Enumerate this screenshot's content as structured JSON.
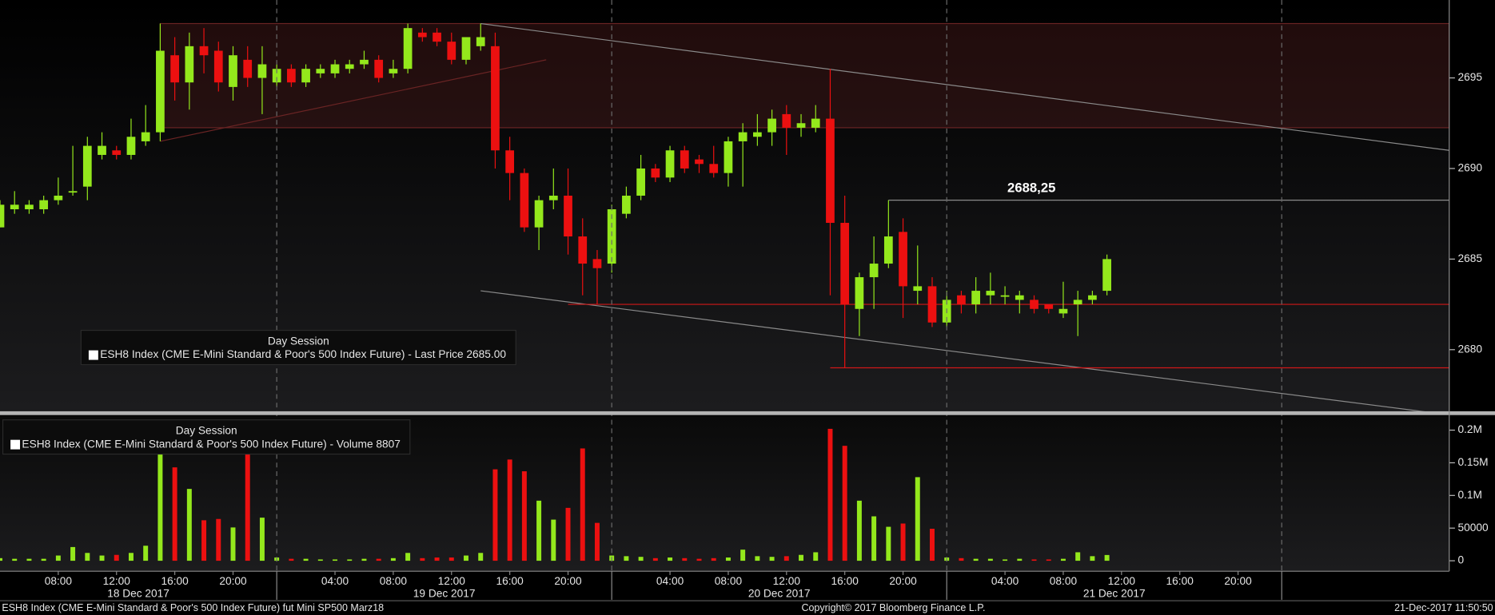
{
  "chart_data": {
    "type": "candlestick",
    "days": [
      {
        "label": "18 Dec 2017",
        "categories": [
          null,
          null,
          null,
          null,
          "08:00",
          null,
          null,
          null,
          "12:00",
          null,
          null,
          null,
          "16:00",
          null,
          null,
          null,
          "20:00",
          null,
          null
        ]
      },
      {
        "label": "19 Dec 2017",
        "categories": [
          null,
          null,
          null,
          null,
          "04:00",
          null,
          null,
          null,
          "08:00",
          null,
          null,
          null,
          "12:00",
          null,
          null,
          null,
          "16:00",
          null,
          null,
          null,
          "20:00",
          null,
          null
        ]
      },
      {
        "label": "20 Dec 2017",
        "categories": [
          null,
          null,
          null,
          null,
          "04:00",
          null,
          null,
          null,
          "08:00",
          null,
          null,
          null,
          "12:00",
          null,
          null,
          null,
          "16:00",
          null,
          null,
          null,
          "20:00",
          null,
          null
        ]
      },
      {
        "label": "21 Dec 2017",
        "categories": [
          null,
          null,
          null,
          null,
          "04:00",
          null,
          null,
          null,
          "08:00",
          null,
          null,
          null,
          "12:00",
          null,
          null,
          null,
          "16:00",
          null,
          null,
          null,
          "20:00",
          null,
          null
        ]
      },
      {
        "label": null,
        "categories": [
          null,
          null,
          null,
          null,
          null,
          null,
          null,
          null,
          null,
          null,
          null,
          null
        ]
      }
    ],
    "open": [
      2686.75,
      2687.75,
      2687.75,
      2687.75,
      2688.25,
      2688.75,
      2689.0,
      2690.75,
      2691.0,
      2690.75,
      2691.5,
      2692.0,
      2696.25,
      2694.75,
      2696.75,
      2696.5,
      2694.5,
      2696.0,
      2695.0,
      2694.75,
      2695.5,
      2694.75,
      2695.25,
      2695.25,
      2695.5,
      2695.75,
      2696.0,
      2695.25,
      2695.5,
      2697.5,
      2697.5,
      2697.0,
      2696.0,
      2696.75,
      2696.75,
      2691.0,
      2689.75,
      2686.75,
      2688.25,
      2688.5,
      2686.25,
      2685.0,
      2684.75,
      2687.5,
      2688.5,
      2690.0,
      2689.5,
      2691.0,
      2690.5,
      2690.25,
      2689.75,
      2691.5,
      2691.75,
      2692.0,
      2693.0,
      2692.25,
      2692.25,
      2692.75,
      2687.0,
      2682.25,
      2684.0,
      2684.75,
      2686.5,
      2683.25,
      2683.5,
      2681.5,
      2683.0,
      2682.5,
      2683.0,
      2683.0,
      2682.75,
      2682.75,
      2682.5,
      2682.0,
      2682.5,
      2682.75,
      2683.25
    ],
    "high": [
      2688.25,
      2688.75,
      2688.25,
      2688.5,
      2689.5,
      2691.25,
      2691.75,
      2692.0,
      2691.25,
      2692.75,
      2693.5,
      2698.0,
      2697.25,
      2697.5,
      2697.75,
      2697.0,
      2696.75,
      2696.75,
      2696.75,
      2695.75,
      2695.75,
      2695.75,
      2695.75,
      2696.0,
      2696.0,
      2696.5,
      2696.25,
      2696.0,
      2698.0,
      2697.75,
      2697.75,
      2697.5,
      2697.25,
      2698.0,
      2697.5,
      2691.75,
      2690.0,
      2688.5,
      2690.0,
      2690.0,
      2687.25,
      2685.5,
      2688.0,
      2689.0,
      2690.75,
      2690.25,
      2691.25,
      2691.25,
      2690.75,
      2691.25,
      2691.75,
      2692.5,
      2693.0,
      2693.25,
      2693.5,
      2693.0,
      2693.5,
      2695.5,
      2688.5,
      2684.25,
      2686.25,
      2688.25,
      2687.25,
      2685.75,
      2684.0,
      2683.25,
      2683.25,
      2684.0,
      2684.25,
      2683.5,
      2683.25,
      2683.0,
      2682.5,
      2683.75,
      2683.25,
      2683.25,
      2685.25
    ],
    "low": [
      2686.75,
      2687.5,
      2687.5,
      2687.5,
      2688.0,
      2688.5,
      2688.25,
      2690.5,
      2690.5,
      2690.5,
      2691.25,
      2691.5,
      2693.75,
      2693.25,
      2695.25,
      2694.25,
      2693.75,
      2694.5,
      2693.0,
      2694.5,
      2694.5,
      2694.5,
      2695.0,
      2695.0,
      2695.25,
      2695.5,
      2694.75,
      2695.0,
      2695.25,
      2697.0,
      2696.75,
      2695.75,
      2695.75,
      2696.5,
      2690.0,
      2688.25,
      2686.5,
      2685.5,
      2687.75,
      2685.25,
      2683.0,
      2682.5,
      2684.25,
      2687.25,
      2688.25,
      2689.25,
      2689.25,
      2689.75,
      2689.75,
      2689.5,
      2689.0,
      2689.0,
      2691.25,
      2691.25,
      2690.75,
      2691.75,
      2692.0,
      2683.0,
      2679.0,
      2680.75,
      2682.25,
      2684.5,
      2681.75,
      2682.5,
      2681.25,
      2681.25,
      2682.0,
      2682.0,
      2682.5,
      2682.5,
      2682.0,
      2682.0,
      2682.0,
      2681.75,
      2680.75,
      2682.5,
      2683.0
    ],
    "close": [
      2688.0,
      2688.0,
      2688.0,
      2688.25,
      2688.5,
      2688.75,
      2691.25,
      2691.25,
      2690.75,
      2691.75,
      2692.0,
      2696.5,
      2694.75,
      2696.75,
      2696.25,
      2694.75,
      2696.25,
      2695.0,
      2695.75,
      2695.5,
      2694.75,
      2695.5,
      2695.5,
      2695.75,
      2695.75,
      2696.0,
      2695.0,
      2695.5,
      2697.75,
      2697.25,
      2697.0,
      2696.0,
      2697.25,
      2697.25,
      2691.0,
      2689.75,
      2686.75,
      2688.25,
      2688.5,
      2686.25,
      2684.75,
      2684.5,
      2687.75,
      2688.5,
      2690.0,
      2689.5,
      2691.0,
      2690.0,
      2690.25,
      2689.75,
      2691.5,
      2692.0,
      2692.0,
      2692.75,
      2692.25,
      2692.5,
      2692.75,
      2687.0,
      2682.5,
      2684.0,
      2684.75,
      2686.25,
      2683.5,
      2683.5,
      2681.5,
      2682.75,
      2682.5,
      2683.25,
      2683.25,
      2683.0,
      2683.0,
      2682.25,
      2682.25,
      2682.25,
      2682.75,
      2683.0,
      2685.0
    ],
    "up_color": "#94e81c",
    "down_color": "#ec1010",
    "ylim": [
      2676.6,
      2699.3
    ],
    "yticks": [
      2680,
      2685,
      2690,
      2695
    ],
    "legend": {
      "heading": "Day Session",
      "text": "ESH8 Index (CME E-Mini Standard & Poor's 500 Index Future) - Last Price 2685.00"
    },
    "annotations": [
      {
        "kind": "rect",
        "x": [
          11,
          99.5
        ],
        "y": [
          2692.25,
          2698.0
        ],
        "color": "#6a2424"
      },
      {
        "kind": "line",
        "x": [
          11,
          37.5
        ],
        "y": [
          2691.5,
          2696.0
        ],
        "color": "#6a2424"
      },
      {
        "kind": "line",
        "x": [
          33,
          99.5
        ],
        "y": [
          2698.0,
          2691.0
        ],
        "color": "#8a8a8a"
      },
      {
        "kind": "line",
        "x": [
          33,
          99.5
        ],
        "y": [
          2683.25,
          2676.4
        ],
        "color": "#8a8a8a"
      },
      {
        "kind": "line",
        "x": [
          39,
          99.5
        ],
        "y": [
          2682.5,
          2682.5
        ],
        "color": "#d01818"
      },
      {
        "kind": "line",
        "x": [
          57,
          99.5
        ],
        "y": [
          2679.0,
          2679.0
        ],
        "color": "#d01818"
      },
      {
        "kind": "line",
        "x": [
          61,
          99.5
        ],
        "y": [
          2688.25,
          2688.25
        ],
        "color": "#8a8a8a",
        "label": "2688,25"
      }
    ],
    "volume": {
      "type": "bar",
      "values": [
        4000,
        3000,
        3000,
        3000,
        8000,
        21000,
        12000,
        8000,
        9000,
        12000,
        23000,
        180000,
        143000,
        110000,
        62000,
        64000,
        51000,
        172000,
        66000,
        5000,
        3000,
        3000,
        2000,
        2000,
        2000,
        3000,
        3000,
        4000,
        12000,
        4000,
        5000,
        5000,
        8000,
        12000,
        140000,
        155000,
        137000,
        92000,
        63000,
        81000,
        172000,
        58000,
        8000,
        7000,
        6000,
        4000,
        5000,
        4000,
        3000,
        4000,
        5000,
        17000,
        7000,
        6000,
        7000,
        9000,
        13000,
        202000,
        176000,
        92000,
        68000,
        52000,
        57000,
        128000,
        49000,
        5000,
        4000,
        3000,
        3000,
        2000,
        3000,
        2000,
        2000,
        3000,
        13000,
        7000,
        8807
      ],
      "ylim": [
        -16000,
        221600
      ],
      "yticks": [
        0,
        50000,
        {
          "value": 100000,
          "label": "0.1M"
        },
        {
          "value": 150000,
          "label": "0.15M"
        },
        {
          "value": 200000,
          "label": "0.2M"
        }
      ],
      "legend": {
        "heading": "Day Session",
        "text": "ESH8 Index (CME E-Mini Standard & Poor's 500 Index Future) - Volume 8807"
      }
    }
  },
  "footer": {
    "left": "ESH8 Index (CME E-Mini Standard & Poor's 500 Index Future) fut Mini SP500 Marz18",
    "center": "Copyright© 2017 Bloomberg Finance L.P.",
    "right": "21-Dec-2017 11:50:50"
  }
}
